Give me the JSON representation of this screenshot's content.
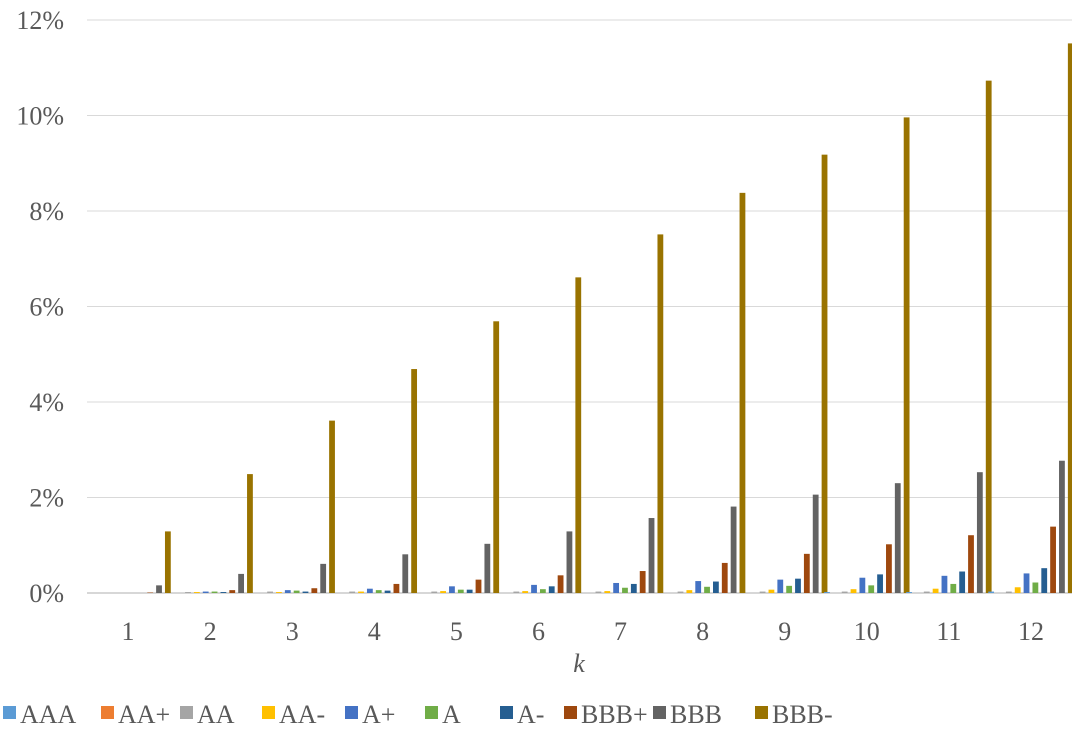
{
  "chart_data": {
    "type": "bar",
    "title": "",
    "xlabel": "k",
    "ylabel": "",
    "ylim": [
      0,
      0.12
    ],
    "y_tick_values": [
      0,
      0.02,
      0.04,
      0.06,
      0.08,
      0.1,
      0.12
    ],
    "y_tick_labels": [
      "0%",
      "2%",
      "4%",
      "6%",
      "8%",
      "10%",
      "12%"
    ],
    "grid": true,
    "legend_position": "bottom",
    "categories": [
      "1",
      "2",
      "3",
      "4",
      "5",
      "6",
      "7",
      "8",
      "9",
      "10",
      "11",
      "12"
    ],
    "series": [
      {
        "name": "AAA",
        "color": "#5b9bd5",
        "values": [
          0,
          0,
          0,
          0,
          0,
          0,
          0,
          0,
          0,
          0.0002,
          0.0002,
          0.0003
        ]
      },
      {
        "name": "AA+",
        "color": "#ed7d31",
        "values": [
          0,
          0,
          0,
          0,
          0,
          0,
          0,
          0,
          0,
          0,
          0,
          0
        ]
      },
      {
        "name": "AA",
        "color": "#a5a5a5",
        "values": [
          0,
          0.0002,
          0.0003,
          0.0003,
          0.0003,
          0.0003,
          0.0003,
          0.0003,
          0.0003,
          0.0003,
          0.0003,
          0.0003
        ]
      },
      {
        "name": "AA-",
        "color": "#ffc000",
        "values": [
          0,
          0.0002,
          0.0002,
          0.0003,
          0.0004,
          0.0004,
          0.0004,
          0.0006,
          0.0007,
          0.0008,
          0.0009,
          0.0012
        ]
      },
      {
        "name": "A+",
        "color": "#4472c4",
        "values": [
          0,
          0.0003,
          0.0006,
          0.0009,
          0.0014,
          0.0017,
          0.0021,
          0.0025,
          0.0028,
          0.0032,
          0.0036,
          0.0041
        ]
      },
      {
        "name": "A",
        "color": "#70ad47",
        "values": [
          0,
          0.0003,
          0.0005,
          0.0006,
          0.0007,
          0.0008,
          0.0011,
          0.0013,
          0.0015,
          0.0016,
          0.0019,
          0.0022
        ]
      },
      {
        "name": "A-",
        "color": "#255e91",
        "values": [
          0,
          0.0002,
          0.0003,
          0.0005,
          0.0007,
          0.0014,
          0.0019,
          0.0024,
          0.003,
          0.0039,
          0.0045,
          0.0052
        ]
      },
      {
        "name": "BBB+",
        "color": "#9e480e",
        "values": [
          0.0001,
          0.0006,
          0.001,
          0.0019,
          0.0028,
          0.0037,
          0.0046,
          0.0063,
          0.0082,
          0.0102,
          0.0121,
          0.0139
        ]
      },
      {
        "name": "BBB",
        "color": "#636363",
        "values": [
          0.0016,
          0.004,
          0.0061,
          0.0081,
          0.0103,
          0.0129,
          0.0157,
          0.0181,
          0.0206,
          0.023,
          0.0253,
          0.0277
        ]
      },
      {
        "name": "BBB-",
        "color": "#997300",
        "values": [
          0.0129,
          0.0249,
          0.0361,
          0.0469,
          0.0569,
          0.0661,
          0.0751,
          0.0838,
          0.0918,
          0.0996,
          0.1073,
          0.1151
        ]
      }
    ]
  }
}
